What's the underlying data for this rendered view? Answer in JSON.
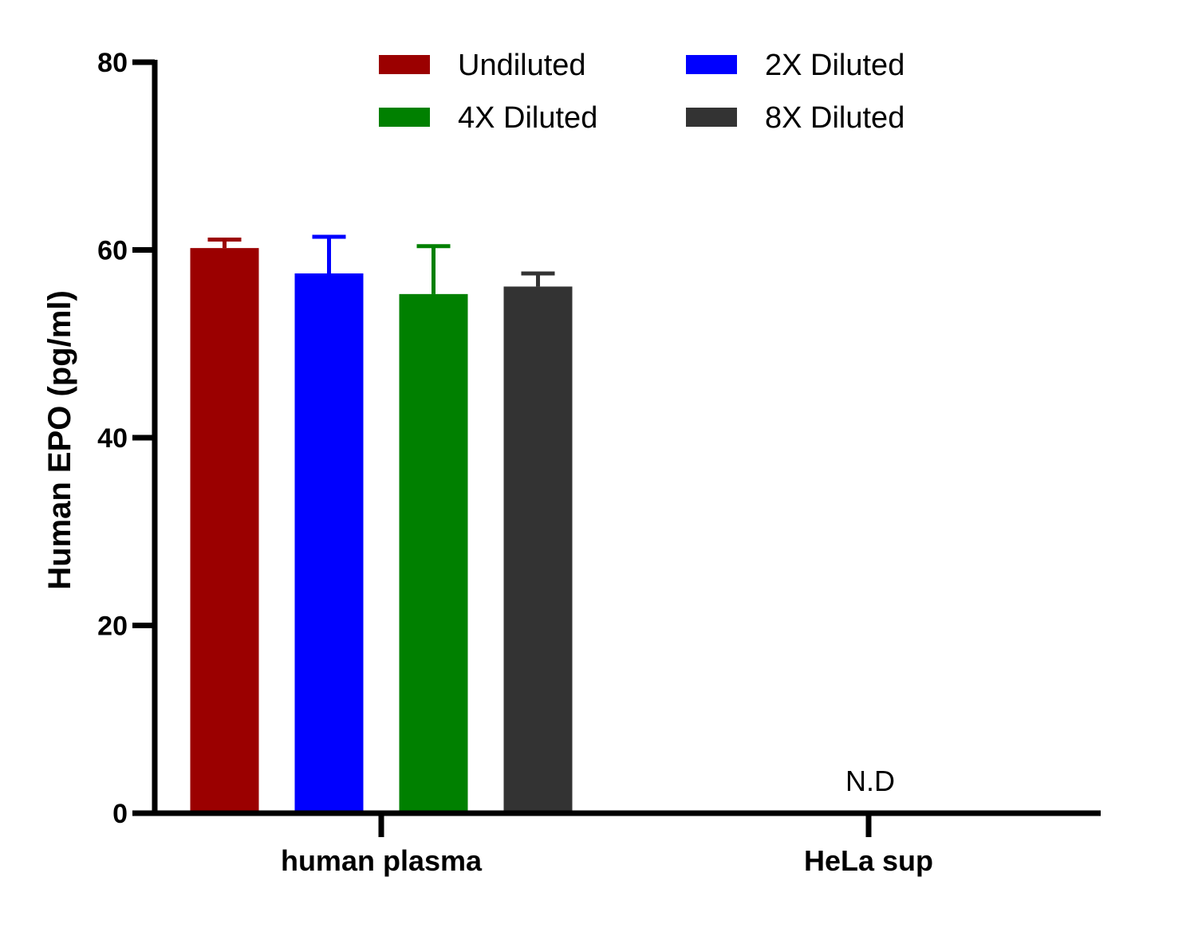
{
  "chart_data": {
    "type": "bar",
    "title": "",
    "xlabel": "",
    "ylabel": "Human EPO (pg/ml)",
    "ylim": [
      0,
      80
    ],
    "yticks": [
      0,
      20,
      40,
      60,
      80
    ],
    "grid": false,
    "legend_position": "top",
    "categories": [
      "human plasma",
      "HeLa sup"
    ],
    "series": [
      {
        "name": "Undiluted",
        "color": "#9b0000",
        "values": [
          60.2,
          null
        ],
        "error": [
          0.9,
          null
        ]
      },
      {
        "name": "2X Diluted",
        "color": "#0000ff",
        "values": [
          57.5,
          null
        ],
        "error": [
          3.9,
          null
        ]
      },
      {
        "name": "4X Diluted",
        "color": "#008000",
        "values": [
          55.3,
          null
        ],
        "error": [
          5.1,
          null
        ]
      },
      {
        "name": "8X Diluted",
        "color": "#333333",
        "values": [
          56.1,
          null
        ],
        "error": [
          1.4,
          null
        ]
      }
    ],
    "annotations": [
      {
        "category": "HeLa sup",
        "text": "N.D"
      }
    ]
  }
}
